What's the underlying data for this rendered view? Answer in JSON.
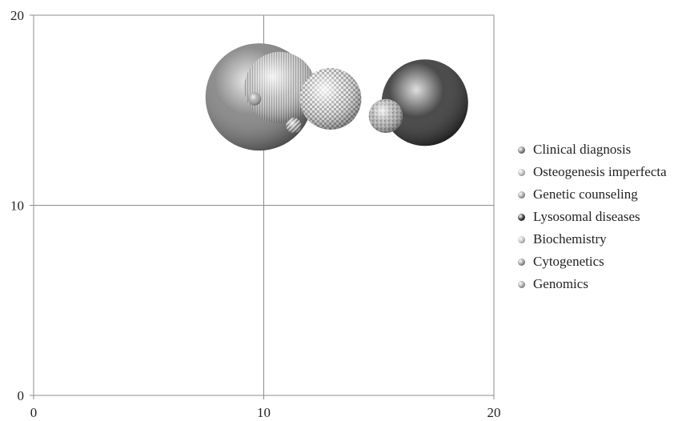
{
  "chart_data": {
    "type": "bubble",
    "x_range": [
      0,
      20
    ],
    "y_range": [
      0,
      20
    ],
    "x_ticks": [
      "0",
      "10",
      "20"
    ],
    "y_ticks": [
      "0",
      "10",
      "20"
    ],
    "grid": true,
    "legend_position": "right",
    "series": [
      {
        "name": "Clinical diagnosis",
        "x": 9.8,
        "y": 15.7,
        "size": 100,
        "color": "#7a7a7a",
        "texture": "smooth"
      },
      {
        "name": "Osteogenesis imperfecta",
        "x": 10.7,
        "y": 16.2,
        "size": 44,
        "color": "#b8b8b8",
        "texture": "vertical-lines"
      },
      {
        "name": "Genetic counseling",
        "x": 11.3,
        "y": 14.2,
        "size": 2,
        "color": "#9a9a9a",
        "texture": "diagonal"
      },
      {
        "name": "Lysosomal diseases",
        "x": 17.0,
        "y": 15.4,
        "size": 65,
        "color": "#2b2b2b",
        "texture": "smooth"
      },
      {
        "name": "Biochemistry",
        "x": 12.9,
        "y": 15.6,
        "size": 33,
        "color": "#bdbdbd",
        "texture": "checker"
      },
      {
        "name": "Cytogenetics",
        "x": 15.3,
        "y": 14.7,
        "size": 10,
        "color": "#8e8e8e",
        "texture": "speckle"
      },
      {
        "name": "Genomics",
        "x": 9.6,
        "y": 15.6,
        "size": 1.5,
        "color": "#a0a0a0",
        "texture": "smooth"
      }
    ]
  }
}
